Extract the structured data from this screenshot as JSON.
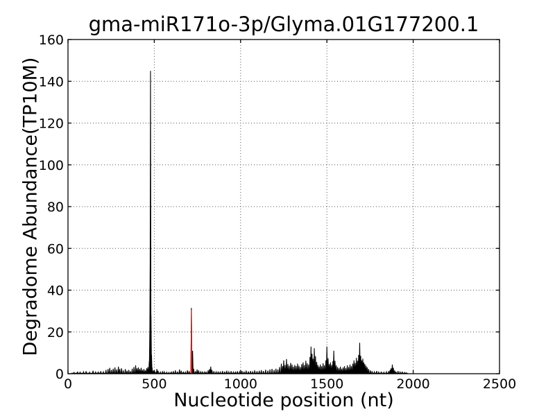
{
  "chart_data": {
    "type": "line",
    "title": "gma-miR171o-3p/Glyma.01G177200.1",
    "xlabel": "Nucleotide position (nt)",
    "ylabel": "Degradome Abundance(TP10M)",
    "xlim": [
      0,
      2500
    ],
    "ylim": [
      0,
      160
    ],
    "xticks": [
      0,
      500,
      1000,
      1500,
      2000,
      2500
    ],
    "yticks": [
      0,
      20,
      40,
      60,
      80,
      100,
      120,
      140,
      160
    ],
    "grid": {
      "on": true,
      "linestyle": "dotted",
      "color": "#555555"
    },
    "tick_direction": "in",
    "background_color": "#ffffff",
    "axis_color": "#000000",
    "legend": null,
    "series": [
      {
        "name": "degradome-abundance",
        "color": "#000000",
        "points": [
          [
            35,
            0.6
          ],
          [
            55,
            1
          ],
          [
            70,
            0.7
          ],
          [
            90,
            0.9
          ],
          [
            105,
            1.2
          ],
          [
            125,
            0.7
          ],
          [
            145,
            1.4
          ],
          [
            160,
            0.8
          ],
          [
            175,
            1
          ],
          [
            190,
            1.2
          ],
          [
            205,
            0.9
          ],
          [
            220,
            1.8
          ],
          [
            232,
            2.2
          ],
          [
            242,
            2.8
          ],
          [
            252,
            1.8
          ],
          [
            262,
            2.4
          ],
          [
            272,
            3
          ],
          [
            282,
            2
          ],
          [
            292,
            3.4
          ],
          [
            300,
            2.2
          ],
          [
            310,
            2.6
          ],
          [
            320,
            1.6
          ],
          [
            332,
            2.2
          ],
          [
            342,
            1.4
          ],
          [
            352,
            1.8
          ],
          [
            362,
            1.2
          ],
          [
            372,
            2.4
          ],
          [
            382,
            3.2
          ],
          [
            392,
            4
          ],
          [
            400,
            2.6
          ],
          [
            408,
            3
          ],
          [
            416,
            2.2
          ],
          [
            424,
            2.8
          ],
          [
            432,
            1.8
          ],
          [
            440,
            2.2
          ],
          [
            448,
            1.6
          ],
          [
            456,
            2.6
          ],
          [
            463,
            3.2
          ],
          [
            471,
            6
          ],
          [
            474,
            20
          ],
          [
            476,
            52
          ],
          [
            478,
            145
          ],
          [
            481,
            28
          ],
          [
            484,
            9
          ],
          [
            487,
            3
          ],
          [
            495,
            1.5
          ],
          [
            505,
            1
          ],
          [
            515,
            2.2
          ],
          [
            522,
            1.4
          ],
          [
            535,
            0.8
          ],
          [
            548,
            1.2
          ],
          [
            558,
            0.9
          ],
          [
            572,
            0.7
          ],
          [
            585,
            0.6
          ],
          [
            598,
            1
          ],
          [
            610,
            1.2
          ],
          [
            622,
            1.6
          ],
          [
            634,
            1
          ],
          [
            646,
            2
          ],
          [
            656,
            1.4
          ],
          [
            668,
            1
          ],
          [
            680,
            0.8
          ],
          [
            692,
            1.6
          ],
          [
            702,
            1.2
          ],
          [
            715,
            31.5
          ],
          [
            722,
            11
          ],
          [
            728,
            2.4
          ],
          [
            738,
            1.2
          ],
          [
            748,
            2
          ],
          [
            757,
            1.6
          ],
          [
            768,
            0.9
          ],
          [
            778,
            1.1
          ],
          [
            790,
            0.8
          ],
          [
            800,
            1
          ],
          [
            812,
            1.6
          ],
          [
            820,
            2.2
          ],
          [
            827,
            3.4
          ],
          [
            834,
            1.8
          ],
          [
            845,
            1.2
          ],
          [
            858,
            0.9
          ],
          [
            870,
            1.1
          ],
          [
            882,
            0.8
          ],
          [
            895,
            1.3
          ],
          [
            908,
            1
          ],
          [
            920,
            1.4
          ],
          [
            932,
            0.9
          ],
          [
            945,
            1.2
          ],
          [
            958,
            0.8
          ],
          [
            970,
            1
          ],
          [
            982,
            1.2
          ],
          [
            995,
            0.9
          ],
          [
            1008,
            1.3
          ],
          [
            1020,
            1
          ],
          [
            1032,
            1.5
          ],
          [
            1045,
            1.1
          ],
          [
            1058,
            1.3
          ],
          [
            1070,
            0.9
          ],
          [
            1082,
            1.6
          ],
          [
            1095,
            1.2
          ],
          [
            1108,
            1.4
          ],
          [
            1120,
            1.7
          ],
          [
            1132,
            1.3
          ],
          [
            1145,
            1.9
          ],
          [
            1158,
            1.5
          ],
          [
            1170,
            2
          ],
          [
            1182,
            2.3
          ],
          [
            1194,
            1.8
          ],
          [
            1205,
            2.4
          ],
          [
            1216,
            2
          ],
          [
            1226,
            3.2
          ],
          [
            1236,
            4.8
          ],
          [
            1244,
            3.6
          ],
          [
            1250,
            6.4
          ],
          [
            1258,
            4.2
          ],
          [
            1266,
            7
          ],
          [
            1274,
            4.6
          ],
          [
            1282,
            3.8
          ],
          [
            1290,
            5.2
          ],
          [
            1298,
            4.4
          ],
          [
            1306,
            3.4
          ],
          [
            1314,
            4.2
          ],
          [
            1322,
            3.6
          ],
          [
            1330,
            4.8
          ],
          [
            1338,
            3.8
          ],
          [
            1346,
            3.2
          ],
          [
            1354,
            4.6
          ],
          [
            1362,
            5.4
          ],
          [
            1370,
            4.2
          ],
          [
            1378,
            6.2
          ],
          [
            1386,
            5
          ],
          [
            1394,
            4.4
          ],
          [
            1402,
            8
          ],
          [
            1408,
            13
          ],
          [
            1414,
            9.6
          ],
          [
            1420,
            7.2
          ],
          [
            1427,
            12.2
          ],
          [
            1434,
            8.4
          ],
          [
            1441,
            5.6
          ],
          [
            1448,
            4.2
          ],
          [
            1455,
            3.4
          ],
          [
            1462,
            4.4
          ],
          [
            1470,
            3.6
          ],
          [
            1478,
            5
          ],
          [
            1486,
            4
          ],
          [
            1494,
            6.4
          ],
          [
            1500,
            13
          ],
          [
            1507,
            7.4
          ],
          [
            1514,
            4.6
          ],
          [
            1521,
            5.4
          ],
          [
            1528,
            4.2
          ],
          [
            1535,
            6
          ],
          [
            1540,
            11
          ],
          [
            1547,
            6.2
          ],
          [
            1554,
            4
          ],
          [
            1562,
            3.2
          ],
          [
            1570,
            2.6
          ],
          [
            1578,
            3.4
          ],
          [
            1586,
            2.4
          ],
          [
            1594,
            3
          ],
          [
            1602,
            3.6
          ],
          [
            1610,
            2.6
          ],
          [
            1618,
            4
          ],
          [
            1626,
            3.2
          ],
          [
            1634,
            4.4
          ],
          [
            1642,
            3.6
          ],
          [
            1650,
            4.8
          ],
          [
            1657,
            6.4
          ],
          [
            1664,
            5.2
          ],
          [
            1671,
            7.6
          ],
          [
            1678,
            6.2
          ],
          [
            1684,
            9
          ],
          [
            1690,
            14.8
          ],
          [
            1696,
            8.6
          ],
          [
            1702,
            6.4
          ],
          [
            1708,
            7.2
          ],
          [
            1714,
            5.4
          ],
          [
            1720,
            4.6
          ],
          [
            1727,
            3.8
          ],
          [
            1734,
            3
          ],
          [
            1742,
            2.2
          ],
          [
            1752,
            1.6
          ],
          [
            1762,
            1.2
          ],
          [
            1775,
            0.9
          ],
          [
            1788,
            1.3
          ],
          [
            1800,
            0.8
          ],
          [
            1815,
            1
          ],
          [
            1830,
            0.7
          ],
          [
            1845,
            0.9
          ],
          [
            1858,
            1.2
          ],
          [
            1866,
            1.8
          ],
          [
            1872,
            2.6
          ],
          [
            1879,
            4.4
          ],
          [
            1885,
            2.8
          ],
          [
            1892,
            1.6
          ],
          [
            1900,
            1
          ],
          [
            1912,
            1.3
          ],
          [
            1924,
            0.8
          ],
          [
            1936,
            1
          ],
          [
            1950,
            0.6
          ],
          [
            1960,
            0.4
          ]
        ]
      },
      {
        "name": "mirna-cleavage-site",
        "color": "#ff0000",
        "points": [
          [
            715,
            30.5
          ]
        ]
      }
    ],
    "data_extent_x": [
      20,
      1968
    ]
  }
}
